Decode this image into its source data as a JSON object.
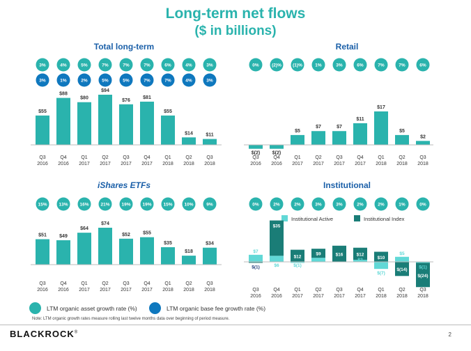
{
  "page": {
    "title": "Long-term net flows",
    "subtitle": "($ in billions)",
    "legend": {
      "asset": "LTM organic asset growth rate (%)",
      "fee": "LTM organic base fee growth rate (%)"
    },
    "note": "Note: LTM organic growth rates measure rolling last twelve months data over beginning of period measure.",
    "logo": "BLACKROCK",
    "logo_mark": "®",
    "page_number": "2"
  },
  "colors": {
    "teal": "#2ab3ad",
    "blue": "#0f78be",
    "light_teal": "#61d8d6",
    "dark_teal": "#1a7d77",
    "title_blue": "#1a5fa8",
    "neg_label": "#1f3d7a"
  },
  "categories": [
    "Q3\n2016",
    "Q4\n2016",
    "Q1\n2017",
    "Q2\n2017",
    "Q3\n2017",
    "Q4\n2017",
    "Q1\n2018",
    "Q2\n2018",
    "Q3\n2018"
  ],
  "chart_data": [
    {
      "id": "total",
      "type": "bar",
      "title": "Total long-term",
      "categories": [
        "Q3 2016",
        "Q4 2016",
        "Q1 2017",
        "Q2 2017",
        "Q3 2017",
        "Q4 2017",
        "Q1 2018",
        "Q2 2018",
        "Q3 2018"
      ],
      "values": [
        55,
        88,
        80,
        94,
        76,
        81,
        55,
        14,
        11
      ],
      "labels": [
        "$55",
        "$88",
        "$80",
        "$94",
        "$76",
        "$81",
        "$55",
        "$14",
        "$11"
      ],
      "asset_growth": [
        "3%",
        "4%",
        "5%",
        "7%",
        "7%",
        "7%",
        "6%",
        "4%",
        "3%"
      ],
      "fee_growth": [
        "3%",
        "1%",
        "2%",
        "5%",
        "5%",
        "7%",
        "7%",
        "4%",
        "3%"
      ],
      "ylim": [
        0,
        100
      ]
    },
    {
      "id": "retail",
      "type": "bar",
      "title": "Retail",
      "categories": [
        "Q3 2016",
        "Q4 2016",
        "Q1 2017",
        "Q2 2017",
        "Q3 2017",
        "Q4 2017",
        "Q1 2018",
        "Q2 2018",
        "Q3 2018"
      ],
      "values": [
        -2,
        -2,
        5,
        7,
        7,
        11,
        17,
        5,
        2
      ],
      "labels": [
        "$(2)",
        "$(2)",
        "$5",
        "$7",
        "$7",
        "$11",
        "$17",
        "$5",
        "$2"
      ],
      "asset_growth": [
        "0%",
        "(2)%",
        "(1)%",
        "1%",
        "3%",
        "6%",
        "7%",
        "7%",
        "6%"
      ],
      "ylim": [
        -2,
        17
      ]
    },
    {
      "id": "ishares",
      "type": "bar",
      "title": "iShares ETFs",
      "categories": [
        "Q3 2016",
        "Q4 2016",
        "Q1 2017",
        "Q2 2017",
        "Q3 2017",
        "Q4 2017",
        "Q1 2018",
        "Q2 2018",
        "Q3 2018"
      ],
      "values": [
        51,
        49,
        64,
        74,
        52,
        55,
        35,
        18,
        34
      ],
      "labels": [
        "$51",
        "$49",
        "$64",
        "$74",
        "$52",
        "$55",
        "$35",
        "$18",
        "$34"
      ],
      "asset_growth": [
        "15%",
        "13%",
        "16%",
        "21%",
        "19%",
        "19%",
        "15%",
        "10%",
        "9%"
      ],
      "ylim": [
        0,
        74
      ]
    },
    {
      "id": "institutional",
      "type": "bar",
      "title": "Institutional",
      "legend": [
        "Institutional Active",
        "Institutional Index"
      ],
      "categories": [
        "Q3 2016",
        "Q4 2016",
        "Q1 2017",
        "Q2 2017",
        "Q3 2017",
        "Q4 2017",
        "Q1 2018",
        "Q2 2018",
        "Q3 2018"
      ],
      "series": [
        {
          "name": "Institutional Active",
          "values": [
            7,
            6,
            -1,
            4,
            0,
            2,
            -7,
            5,
            -1
          ],
          "labels": [
            "$7",
            "$6",
            "$(1)",
            "$4",
            "",
            "$2",
            "$(7)",
            "$5",
            "$(1)"
          ]
        },
        {
          "name": "Institutional Index",
          "values": [
            -1,
            35,
            12,
            9,
            16,
            12,
            10,
            -14,
            -24
          ],
          "labels": [
            "$(1)",
            "$35",
            "$12",
            "$9",
            "$16",
            "$12",
            "$10",
            "$(14)",
            "$(24)"
          ]
        }
      ],
      "asset_growth": [
        "0%",
        "2%",
        "2%",
        "3%",
        "3%",
        "2%",
        "2%",
        "1%",
        "0%"
      ]
    }
  ]
}
